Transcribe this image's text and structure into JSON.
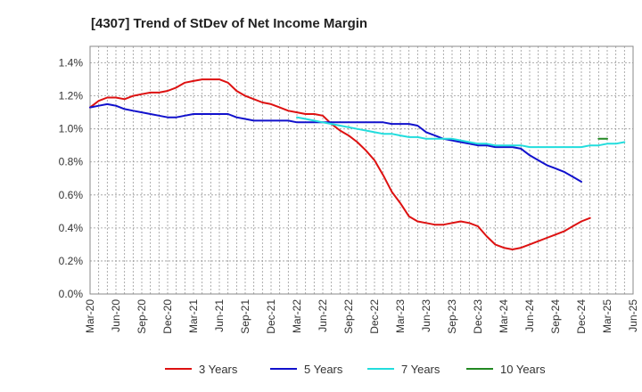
{
  "chart_data": {
    "type": "line",
    "title": "[4307]  Trend of StDev of Net Income Margin",
    "xlabel": "",
    "ylabel": "",
    "x_ticks": [
      "Mar-20",
      "Jun-20",
      "Sep-20",
      "Dec-20",
      "Mar-21",
      "Jun-21",
      "Sep-21",
      "Dec-21",
      "Mar-22",
      "Jun-22",
      "Sep-22",
      "Dec-22",
      "Mar-23",
      "Jun-23",
      "Sep-23",
      "Dec-23",
      "Mar-24",
      "Jun-24",
      "Sep-24",
      "Dec-24",
      "Mar-25",
      "Jun-25"
    ],
    "y_ticks": [
      "0.0%",
      "0.2%",
      "0.4%",
      "0.6%",
      "0.8%",
      "1.0%",
      "1.2%",
      "1.4%"
    ],
    "ylim": [
      0,
      1.5
    ],
    "grid": true,
    "legend_position": "bottom",
    "series": [
      {
        "name": "3 Years",
        "color": "#dd1111",
        "start": "Mar-20",
        "values": [
          1.13,
          1.17,
          1.19,
          1.19,
          1.18,
          1.2,
          1.21,
          1.22,
          1.22,
          1.23,
          1.25,
          1.28,
          1.29,
          1.3,
          1.3,
          1.3,
          1.28,
          1.23,
          1.2,
          1.18,
          1.16,
          1.15,
          1.13,
          1.11,
          1.1,
          1.09,
          1.09,
          1.08,
          1.03,
          0.99,
          0.96,
          0.92,
          0.87,
          0.81,
          0.72,
          0.62,
          0.55,
          0.47,
          0.44,
          0.43,
          0.42,
          0.42,
          0.43,
          0.44,
          0.43,
          0.41,
          0.35,
          0.3,
          0.28,
          0.27,
          0.28,
          0.3,
          0.32,
          0.34,
          0.36,
          0.38,
          0.41,
          0.44,
          0.46
        ]
      },
      {
        "name": "5 Years",
        "color": "#1111cc",
        "start": "Mar-20",
        "values": [
          1.13,
          1.14,
          1.15,
          1.14,
          1.12,
          1.11,
          1.1,
          1.09,
          1.08,
          1.07,
          1.07,
          1.08,
          1.09,
          1.09,
          1.09,
          1.09,
          1.09,
          1.07,
          1.06,
          1.05,
          1.05,
          1.05,
          1.05,
          1.05,
          1.04,
          1.04,
          1.04,
          1.04,
          1.04,
          1.04,
          1.04,
          1.04,
          1.04,
          1.04,
          1.04,
          1.03,
          1.03,
          1.03,
          1.02,
          0.98,
          0.96,
          0.94,
          0.93,
          0.92,
          0.91,
          0.9,
          0.9,
          0.89,
          0.89,
          0.89,
          0.88,
          0.84,
          0.81,
          0.78,
          0.76,
          0.74,
          0.71,
          0.68
        ]
      },
      {
        "name": "7 Years",
        "color": "#22dddd",
        "start": "Mar-22",
        "values": [
          1.07,
          1.06,
          1.05,
          1.04,
          1.03,
          1.02,
          1.01,
          1.0,
          0.99,
          0.98,
          0.97,
          0.97,
          0.96,
          0.95,
          0.95,
          0.94,
          0.94,
          0.94,
          0.94,
          0.93,
          0.92,
          0.91,
          0.91,
          0.9,
          0.9,
          0.9,
          0.9,
          0.89,
          0.89,
          0.89,
          0.89,
          0.89,
          0.89,
          0.89,
          0.9,
          0.9,
          0.91,
          0.91,
          0.92
        ]
      },
      {
        "name": "10 Years",
        "color": "#228822",
        "start": "Feb-25",
        "values": [
          0.94,
          0.94
        ]
      }
    ]
  }
}
